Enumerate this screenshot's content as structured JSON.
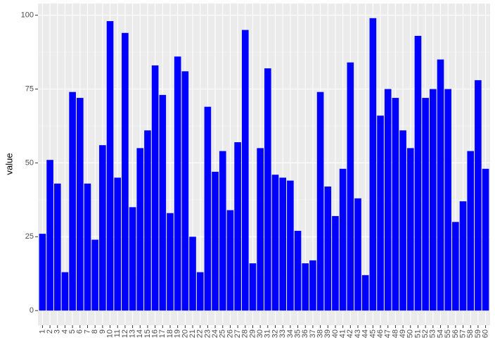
{
  "chart_data": {
    "type": "bar",
    "y_label": "value",
    "categories": [
      "1",
      "2",
      "3",
      "4",
      "5",
      "6",
      "7",
      "8",
      "9",
      "10",
      "11",
      "12",
      "13",
      "14",
      "15",
      "16",
      "17",
      "18",
      "19",
      "20",
      "21",
      "22",
      "23",
      "24",
      "25",
      "26",
      "27",
      "28",
      "29",
      "30",
      "31",
      "32",
      "33",
      "34",
      "35",
      "36",
      "37",
      "38",
      "39",
      "40",
      "41",
      "42",
      "43",
      "44",
      "45",
      "46",
      "47",
      "48",
      "49",
      "50",
      "51",
      "52",
      "53",
      "54",
      "55",
      "56",
      "57",
      "58",
      "59",
      "60"
    ],
    "values": [
      26,
      51,
      43,
      13,
      74,
      72,
      43,
      24,
      56,
      98,
      45,
      94,
      35,
      55,
      61,
      83,
      73,
      33,
      86,
      81,
      25,
      13,
      69,
      47,
      54,
      34,
      57,
      95,
      16,
      55,
      82,
      46,
      45,
      44,
      27,
      16,
      17,
      74,
      42,
      32,
      48,
      84,
      38,
      12,
      99,
      66,
      75,
      72,
      61,
      55,
      93,
      72,
      75,
      85,
      75,
      30,
      37,
      54,
      78,
      48
    ],
    "color": "#0000ff",
    "ylim": [
      -4.95,
      103.95
    ],
    "yticks": [
      0,
      25,
      50,
      75,
      100
    ],
    "grid": true
  }
}
